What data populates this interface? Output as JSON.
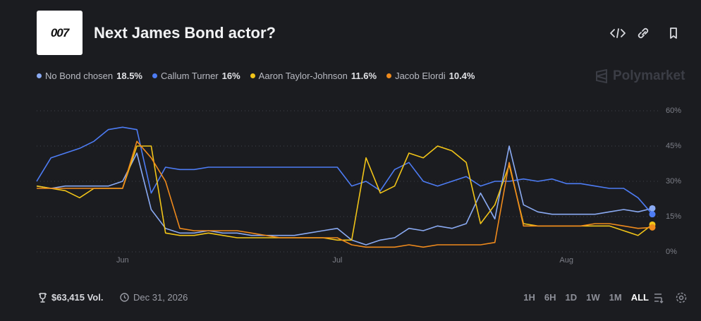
{
  "logo": "007",
  "brand": "Polymarket",
  "volume": "$63,415 Vol.",
  "end_date": "Dec 31, 2026",
  "ranges": [
    "1H",
    "6H",
    "1D",
    "1W",
    "1M",
    "ALL"
  ],
  "chart_data": {
    "type": "line",
    "title": "Next James Bond actor?",
    "categories": [
      null,
      null,
      null,
      null,
      null,
      null,
      "Jun",
      null,
      null,
      null,
      null,
      null,
      null,
      null,
      null,
      null,
      null,
      null,
      null,
      null,
      null,
      "Jul",
      null,
      null,
      null,
      null,
      null,
      null,
      null,
      null,
      null,
      null,
      null,
      null,
      null,
      null,
      null,
      "Aug",
      null,
      null,
      null,
      null,
      null,
      null
    ],
    "ylim": [
      0,
      60
    ],
    "yticks": [
      {
        "value": 0,
        "label": "0%"
      },
      {
        "value": 15,
        "label": "15%"
      },
      {
        "value": 30,
        "label": "30%"
      },
      {
        "value": 45,
        "label": "45%"
      },
      {
        "value": 60,
        "label": "60%"
      }
    ],
    "grid": true,
    "series": [
      {
        "name": "No Bond chosen",
        "current_label": "18.5%",
        "color": "#8aaaf2",
        "values": [
          28,
          27,
          28,
          28,
          28,
          28,
          30,
          42,
          18,
          10,
          8,
          8,
          9,
          8,
          8,
          7,
          7,
          7,
          7,
          8,
          9,
          10,
          5,
          3,
          5,
          6,
          10,
          9,
          11,
          10,
          12,
          25,
          14,
          45,
          20,
          17,
          16,
          16,
          16,
          16,
          17,
          18,
          17,
          18.5
        ]
      },
      {
        "name": "Callum Turner",
        "current_label": "16%",
        "color": "#4d7cf4",
        "values": [
          30,
          40,
          42,
          44,
          47,
          52,
          53,
          52,
          25,
          36,
          35,
          35,
          36,
          36,
          36,
          36,
          36,
          36,
          36,
          36,
          36,
          36,
          28,
          30,
          26,
          35,
          38,
          30,
          28,
          30,
          32,
          28,
          30,
          30,
          31,
          30,
          31,
          29,
          29,
          28,
          27,
          27,
          23,
          16
        ]
      },
      {
        "name": "Aaron Taylor-Johnson",
        "current_label": "11.6%",
        "color": "#f1c418",
        "values": [
          28,
          27,
          26,
          23,
          27,
          27,
          27,
          45,
          45,
          8,
          7,
          7,
          8,
          7,
          6,
          6,
          6,
          6,
          6,
          6,
          6,
          5,
          5,
          40,
          25,
          28,
          42,
          40,
          45,
          43,
          38,
          12,
          20,
          37,
          12,
          11,
          11,
          11,
          11,
          11,
          11,
          9,
          7,
          11.6
        ]
      },
      {
        "name": "Jacob Elordi",
        "current_label": "10.4%",
        "color": "#ef8a1c",
        "values": [
          27,
          27,
          27,
          27,
          27,
          27,
          27,
          47,
          40,
          30,
          10,
          9,
          9,
          9,
          9,
          8,
          7,
          6,
          6,
          6,
          6,
          6,
          3,
          2,
          2,
          2,
          3,
          2,
          3,
          3,
          3,
          3,
          4,
          38,
          11,
          11,
          11,
          11,
          11,
          12,
          12,
          11,
          10,
          10.4
        ]
      }
    ]
  }
}
